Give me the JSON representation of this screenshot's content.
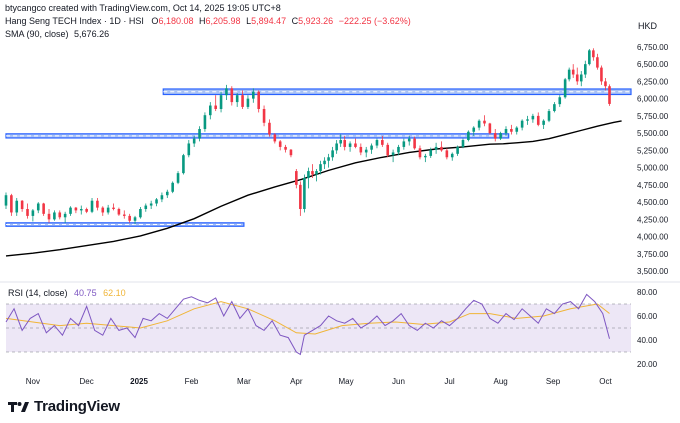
{
  "header": {
    "credit": "btycangco created with TradingView.com, Oct 14, 2025 19:05 UTC+8",
    "instrument": "Hang Seng TECH Index · 1D · HSI",
    "ohlc": {
      "o_label": "O",
      "o": "6,180.08",
      "h_label": "H",
      "h": "6,205.98",
      "l_label": "L",
      "l": "5,894.47",
      "c_label": "C",
      "c": "5,923.26",
      "change": "−222.25 (−3.62%)"
    },
    "sma_label": "SMA (90, close)",
    "sma_value": "5,676.26",
    "currency": "HKD"
  },
  "rsi": {
    "label": "RSI (14, close)",
    "value": "40.75",
    "ma_value": "62.10"
  },
  "brand": {
    "name": "TradingView"
  },
  "colors": {
    "up": "#089981",
    "down": "#f23645",
    "sma": "#000000",
    "zone_fill": "#a9c2f5",
    "zone_border": "#2962ff",
    "rsi_line": "#7e57c2",
    "rsi_ma": "#f0b537",
    "rsi_band": "#ede7f6"
  },
  "chart_data": {
    "type": "candlestick",
    "title": "Hang Seng TECH Index · 1D · HSI",
    "price_axis": {
      "ticks": [
        3500,
        3750,
        4000,
        4250,
        4500,
        4750,
        5000,
        5250,
        5500,
        5750,
        6000,
        6250,
        6500,
        6750
      ],
      "tick_labels": [
        "3,500.00",
        "3,750.00",
        "4,000.00",
        "4,250.00",
        "4,500.00",
        "4,750.00",
        "5,000.00",
        "5,250.00",
        "5,500.00",
        "5,750.00",
        "6,000.00",
        "6,250.00",
        "6,500.00",
        "6,750.00"
      ],
      "range": [
        3400,
        6850
      ]
    },
    "x_axis": {
      "labels": [
        "Nov",
        "Dec",
        "2025",
        "Feb",
        "Mar",
        "Apr",
        "May",
        "Jun",
        "Jul",
        "Aug",
        "Sep",
        "Oct"
      ],
      "label_bars": [
        20,
        60,
        99,
        138,
        177,
        216,
        253,
        292,
        330,
        368,
        407,
        446
      ],
      "total_bars": 465
    },
    "support_zones": [
      {
        "low": 6060,
        "high": 6140,
        "start_bar": 117,
        "end_bar": 465
      },
      {
        "low": 5430,
        "high": 5490,
        "start_bar": 0,
        "end_bar": 374
      },
      {
        "low": 4150,
        "high": 4200,
        "start_bar": 0,
        "end_bar": 177
      }
    ],
    "candles": [
      [
        0,
        4450,
        4640,
        4400,
        4600
      ],
      [
        4,
        4600,
        4620,
        4300,
        4350
      ],
      [
        8,
        4350,
        4560,
        4300,
        4520
      ],
      [
        12,
        4520,
        4530,
        4360,
        4400
      ],
      [
        16,
        4400,
        4480,
        4260,
        4300
      ],
      [
        20,
        4300,
        4400,
        4220,
        4380
      ],
      [
        24,
        4380,
        4500,
        4340,
        4480
      ],
      [
        28,
        4480,
        4490,
        4300,
        4330
      ],
      [
        32,
        4330,
        4400,
        4200,
        4250
      ],
      [
        36,
        4250,
        4380,
        4230,
        4350
      ],
      [
        40,
        4350,
        4380,
        4250,
        4280
      ],
      [
        44,
        4280,
        4360,
        4200,
        4330
      ],
      [
        48,
        4330,
        4440,
        4300,
        4420
      ],
      [
        52,
        4420,
        4430,
        4340,
        4380
      ],
      [
        56,
        4380,
        4450,
        4320,
        4400
      ],
      [
        60,
        4400,
        4420,
        4340,
        4360
      ],
      [
        64,
        4360,
        4560,
        4340,
        4520
      ],
      [
        68,
        4520,
        4560,
        4380,
        4420
      ],
      [
        72,
        4420,
        4440,
        4300,
        4350
      ],
      [
        76,
        4350,
        4460,
        4320,
        4420
      ],
      [
        80,
        4420,
        4480,
        4380,
        4400
      ],
      [
        84,
        4400,
        4420,
        4300,
        4320
      ],
      [
        88,
        4320,
        4380,
        4260,
        4300
      ],
      [
        92,
        4300,
        4330,
        4200,
        4230
      ],
      [
        96,
        4230,
        4300,
        4180,
        4280
      ],
      [
        100,
        4280,
        4430,
        4260,
        4400
      ],
      [
        104,
        4400,
        4480,
        4360,
        4450
      ],
      [
        108,
        4450,
        4520,
        4400,
        4480
      ],
      [
        112,
        4480,
        4560,
        4440,
        4540
      ],
      [
        116,
        4540,
        4640,
        4500,
        4600
      ],
      [
        120,
        4600,
        4680,
        4560,
        4650
      ],
      [
        124,
        4650,
        4800,
        4630,
        4780
      ],
      [
        128,
        4780,
        4950,
        4760,
        4920
      ],
      [
        132,
        4920,
        5200,
        4900,
        5180
      ],
      [
        136,
        5180,
        5400,
        5150,
        5350
      ],
      [
        140,
        5350,
        5460,
        5300,
        5420
      ],
      [
        144,
        5420,
        5600,
        5380,
        5560
      ],
      [
        148,
        5560,
        5800,
        5520,
        5760
      ],
      [
        152,
        5760,
        5950,
        5700,
        5900
      ],
      [
        156,
        5900,
        6050,
        5820,
        5850
      ],
      [
        160,
        5850,
        6100,
        5800,
        6050
      ],
      [
        164,
        6050,
        6200,
        5980,
        6150
      ],
      [
        168,
        6150,
        6180,
        5900,
        5950
      ],
      [
        172,
        5950,
        6080,
        5880,
        6050
      ],
      [
        176,
        6050,
        6120,
        5850,
        5880
      ],
      [
        180,
        5880,
        6050,
        5850,
        6000
      ],
      [
        184,
        6000,
        6150,
        5940,
        6100
      ],
      [
        188,
        6100,
        6120,
        5800,
        5850
      ],
      [
        192,
        5850,
        5900,
        5600,
        5650
      ],
      [
        196,
        5650,
        5700,
        5450,
        5480
      ],
      [
        200,
        5480,
        5500,
        5350,
        5380
      ],
      [
        204,
        5380,
        5400,
        5250,
        5300
      ],
      [
        208,
        5300,
        5330,
        5220,
        5260
      ],
      [
        212,
        5260,
        5270,
        5150,
        5180
      ],
      [
        216,
        4950,
        4980,
        4700,
        4750
      ],
      [
        219,
        4750,
        4800,
        4300,
        4400
      ],
      [
        222,
        4400,
        4900,
        4350,
        4850
      ],
      [
        225,
        4850,
        5000,
        4700,
        4950
      ],
      [
        228,
        4950,
        5050,
        4850,
        4900
      ],
      [
        231,
        4900,
        4980,
        4800,
        4950
      ],
      [
        234,
        4950,
        5100,
        4900,
        5050
      ],
      [
        237,
        5050,
        5150,
        4980,
        5100
      ],
      [
        240,
        5100,
        5200,
        5000,
        5150
      ],
      [
        243,
        5150,
        5300,
        5100,
        5250
      ],
      [
        246,
        5250,
        5400,
        5200,
        5350
      ],
      [
        249,
        5350,
        5480,
        5300,
        5400
      ],
      [
        252,
        5400,
        5460,
        5250,
        5300
      ],
      [
        256,
        5300,
        5380,
        5230,
        5350
      ],
      [
        260,
        5350,
        5420,
        5280,
        5300
      ],
      [
        264,
        5300,
        5350,
        5180,
        5220
      ],
      [
        268,
        5220,
        5300,
        5150,
        5260
      ],
      [
        272,
        5260,
        5350,
        5200,
        5320
      ],
      [
        276,
        5320,
        5420,
        5280,
        5400
      ],
      [
        280,
        5400,
        5460,
        5300,
        5330
      ],
      [
        284,
        5330,
        5360,
        5150,
        5180
      ],
      [
        288,
        5180,
        5260,
        5080,
        5220
      ],
      [
        292,
        5220,
        5330,
        5180,
        5300
      ],
      [
        296,
        5300,
        5420,
        5260,
        5380
      ],
      [
        300,
        5380,
        5460,
        5320,
        5420
      ],
      [
        304,
        5420,
        5450,
        5260,
        5280
      ],
      [
        308,
        5280,
        5320,
        5120,
        5150
      ],
      [
        312,
        5150,
        5200,
        5080,
        5170
      ],
      [
        316,
        5170,
        5290,
        5140,
        5260
      ],
      [
        320,
        5260,
        5360,
        5200,
        5300
      ],
      [
        324,
        5300,
        5380,
        5230,
        5250
      ],
      [
        328,
        5250,
        5280,
        5120,
        5150
      ],
      [
        332,
        5150,
        5220,
        5100,
        5200
      ],
      [
        336,
        5200,
        5320,
        5170,
        5300
      ],
      [
        340,
        5300,
        5420,
        5280,
        5400
      ],
      [
        344,
        5400,
        5540,
        5380,
        5520
      ],
      [
        348,
        5520,
        5600,
        5460,
        5580
      ],
      [
        352,
        5580,
        5700,
        5540,
        5680
      ],
      [
        356,
        5680,
        5760,
        5600,
        5640
      ],
      [
        360,
        5640,
        5650,
        5480,
        5500
      ],
      [
        364,
        5500,
        5560,
        5380,
        5420
      ],
      [
        368,
        5420,
        5520,
        5400,
        5500
      ],
      [
        372,
        5500,
        5600,
        5460,
        5560
      ],
      [
        376,
        5560,
        5620,
        5480,
        5520
      ],
      [
        380,
        5520,
        5600,
        5480,
        5580
      ],
      [
        384,
        5580,
        5700,
        5540,
        5680
      ],
      [
        388,
        5680,
        5750,
        5620,
        5700
      ],
      [
        392,
        5700,
        5780,
        5650,
        5750
      ],
      [
        396,
        5750,
        5800,
        5600,
        5620
      ],
      [
        400,
        5620,
        5700,
        5560,
        5680
      ],
      [
        404,
        5680,
        5850,
        5660,
        5820
      ],
      [
        408,
        5820,
        5950,
        5800,
        5920
      ],
      [
        412,
        5920,
        6050,
        5880,
        6020
      ],
      [
        416,
        6020,
        6300,
        6000,
        6280
      ],
      [
        419,
        6280,
        6450,
        6250,
        6420
      ],
      [
        422,
        6420,
        6500,
        6300,
        6350
      ],
      [
        425,
        6350,
        6450,
        6200,
        6250
      ],
      [
        428,
        6250,
        6400,
        6180,
        6350
      ],
      [
        431,
        6350,
        6550,
        6300,
        6500
      ],
      [
        434,
        6500,
        6720,
        6480,
        6700
      ],
      [
        437,
        6700,
        6730,
        6550,
        6600
      ],
      [
        440,
        6600,
        6650,
        6420,
        6450
      ],
      [
        443,
        6450,
        6480,
        6200,
        6250
      ],
      [
        446,
        6250,
        6300,
        6120,
        6180
      ],
      [
        449,
        6180,
        6205.98,
        5894.47,
        5923.26
      ]
    ],
    "sma": {
      "label": "SMA (90, close)",
      "points": [
        [
          0,
          3720
        ],
        [
          20,
          3760
        ],
        [
          40,
          3810
        ],
        [
          60,
          3870
        ],
        [
          80,
          3930
        ],
        [
          100,
          4010
        ],
        [
          120,
          4120
        ],
        [
          140,
          4260
        ],
        [
          160,
          4440
        ],
        [
          180,
          4600
        ],
        [
          200,
          4720
        ],
        [
          220,
          4830
        ],
        [
          240,
          4960
        ],
        [
          260,
          5070
        ],
        [
          280,
          5150
        ],
        [
          300,
          5220
        ],
        [
          320,
          5270
        ],
        [
          340,
          5300
        ],
        [
          360,
          5340
        ],
        [
          370,
          5345
        ],
        [
          380,
          5360
        ],
        [
          392,
          5380
        ],
        [
          404,
          5420
        ],
        [
          416,
          5480
        ],
        [
          428,
          5540
        ],
        [
          440,
          5600
        ],
        [
          452,
          5655
        ],
        [
          458,
          5676.26
        ]
      ]
    },
    "rsi_axis": {
      "ticks": [
        20,
        40,
        60,
        80
      ],
      "tick_labels": [
        "20.00",
        "40.00",
        "60.00",
        "80.00"
      ],
      "range": [
        15,
        85
      ],
      "band": [
        30,
        70
      ],
      "midline": 50
    },
    "rsi_values": [
      [
        0,
        55
      ],
      [
        6,
        66
      ],
      [
        12,
        48
      ],
      [
        18,
        58
      ],
      [
        24,
        62
      ],
      [
        30,
        46
      ],
      [
        36,
        52
      ],
      [
        42,
        44
      ],
      [
        48,
        58
      ],
      [
        54,
        52
      ],
      [
        60,
        68
      ],
      [
        66,
        48
      ],
      [
        72,
        44
      ],
      [
        78,
        58
      ],
      [
        84,
        48
      ],
      [
        90,
        50
      ],
      [
        96,
        42
      ],
      [
        102,
        58
      ],
      [
        108,
        56
      ],
      [
        114,
        62
      ],
      [
        120,
        58
      ],
      [
        126,
        66
      ],
      [
        132,
        74
      ],
      [
        138,
        76
      ],
      [
        144,
        73
      ],
      [
        150,
        71
      ],
      [
        156,
        75
      ],
      [
        162,
        60
      ],
      [
        168,
        72
      ],
      [
        174,
        58
      ],
      [
        180,
        66
      ],
      [
        186,
        52
      ],
      [
        192,
        48
      ],
      [
        198,
        56
      ],
      [
        204,
        44
      ],
      [
        210,
        42
      ],
      [
        216,
        30
      ],
      [
        219,
        28
      ],
      [
        222,
        44
      ],
      [
        228,
        48
      ],
      [
        234,
        52
      ],
      [
        240,
        60
      ],
      [
        246,
        56
      ],
      [
        252,
        54
      ],
      [
        258,
        58
      ],
      [
        264,
        50
      ],
      [
        270,
        54
      ],
      [
        276,
        60
      ],
      [
        282,
        52
      ],
      [
        288,
        56
      ],
      [
        294,
        62
      ],
      [
        300,
        52
      ],
      [
        306,
        48
      ],
      [
        312,
        54
      ],
      [
        318,
        50
      ],
      [
        324,
        56
      ],
      [
        330,
        52
      ],
      [
        336,
        58
      ],
      [
        342,
        66
      ],
      [
        348,
        73
      ],
      [
        354,
        70
      ],
      [
        360,
        58
      ],
      [
        366,
        54
      ],
      [
        372,
        62
      ],
      [
        378,
        57
      ],
      [
        384,
        66
      ],
      [
        390,
        60
      ],
      [
        396,
        54
      ],
      [
        402,
        66
      ],
      [
        408,
        62
      ],
      [
        414,
        70
      ],
      [
        420,
        72
      ],
      [
        426,
        66
      ],
      [
        432,
        78
      ],
      [
        438,
        72
      ],
      [
        444,
        62
      ],
      [
        449,
        41
      ]
    ],
    "rsi_ma": [
      [
        0,
        58
      ],
      [
        20,
        55
      ],
      [
        40,
        52
      ],
      [
        60,
        54
      ],
      [
        80,
        52
      ],
      [
        100,
        50
      ],
      [
        120,
        56
      ],
      [
        140,
        66
      ],
      [
        160,
        72
      ],
      [
        180,
        66
      ],
      [
        200,
        56
      ],
      [
        216,
        46
      ],
      [
        230,
        45
      ],
      [
        250,
        52
      ],
      [
        270,
        54
      ],
      [
        290,
        55
      ],
      [
        310,
        53
      ],
      [
        330,
        55
      ],
      [
        345,
        62
      ],
      [
        360,
        62
      ],
      [
        380,
        58
      ],
      [
        400,
        60
      ],
      [
        420,
        66
      ],
      [
        440,
        70
      ],
      [
        449,
        62.1
      ]
    ]
  }
}
